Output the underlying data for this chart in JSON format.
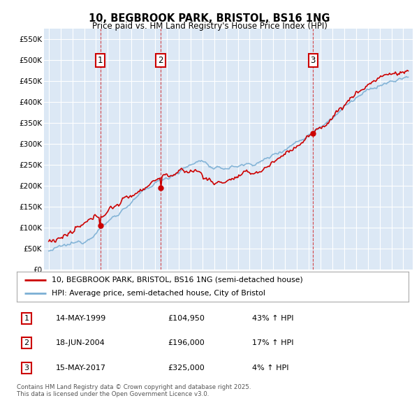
{
  "title": "10, BEGBROOK PARK, BRISTOL, BS16 1NG",
  "subtitle": "Price paid vs. HM Land Registry's House Price Index (HPI)",
  "plot_bg_color": "#dce8f5",
  "ylim": [
    0,
    575000
  ],
  "yticks": [
    0,
    50000,
    100000,
    150000,
    200000,
    250000,
    300000,
    350000,
    400000,
    450000,
    500000,
    550000
  ],
  "ytick_labels": [
    "£0",
    "£50K",
    "£100K",
    "£150K",
    "£200K",
    "£250K",
    "£300K",
    "£350K",
    "£400K",
    "£450K",
    "£500K",
    "£550K"
  ],
  "sales": [
    {
      "date_num": 1999.37,
      "price": 104950,
      "label": "1"
    },
    {
      "date_num": 2004.46,
      "price": 196000,
      "label": "2"
    },
    {
      "date_num": 2017.37,
      "price": 325000,
      "label": "3"
    }
  ],
  "legend_red": "10, BEGBROOK PARK, BRISTOL, BS16 1NG (semi-detached house)",
  "legend_blue": "HPI: Average price, semi-detached house, City of Bristol",
  "table_rows": [
    {
      "num": "1",
      "date": "14-MAY-1999",
      "price": "£104,950",
      "pct": "43% ↑ HPI"
    },
    {
      "num": "2",
      "date": "18-JUN-2004",
      "price": "£196,000",
      "pct": "17% ↑ HPI"
    },
    {
      "num": "3",
      "date": "15-MAY-2017",
      "price": "£325,000",
      "pct": "4% ↑ HPI"
    }
  ],
  "footnote": "Contains HM Land Registry data © Crown copyright and database right 2025.\nThis data is licensed under the Open Government Licence v3.0.",
  "red_color": "#cc0000",
  "blue_color": "#7bafd4"
}
